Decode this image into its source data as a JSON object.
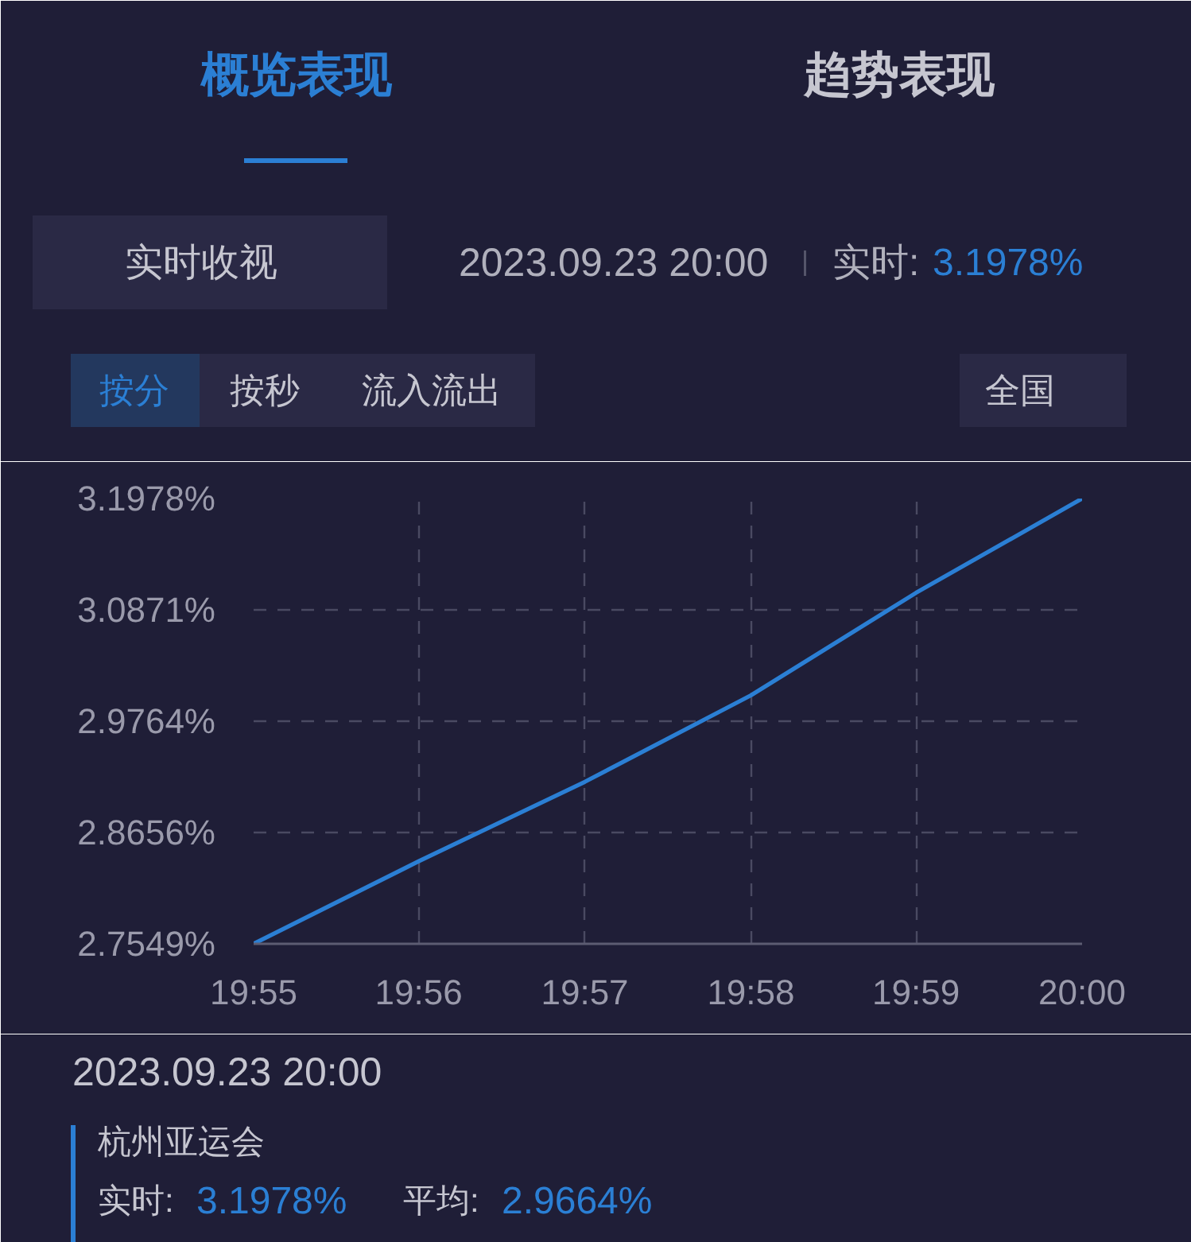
{
  "chart_data": {
    "type": "line",
    "title": "实时收视",
    "x": [
      19.9167,
      19.9333,
      19.95,
      19.9667,
      19.9833,
      20.0
    ],
    "series": [
      {
        "color": "#2b7fd4",
        "values": [
          2.7549,
          2.837,
          2.916,
          3.002,
          3.104,
          3.1978
        ]
      }
    ],
    "xlim": [
      19.9167,
      20.0
    ],
    "xticks": [
      {
        "value": 19.9167,
        "label": "19:55"
      },
      {
        "value": 19.9333,
        "label": "19:56"
      },
      {
        "value": 19.95,
        "label": "19:57"
      },
      {
        "value": 19.9667,
        "label": "19:58"
      },
      {
        "value": 19.9833,
        "label": "19:59"
      },
      {
        "value": 20.0,
        "label": "20:00"
      }
    ],
    "ylim": [
      2.7549,
      3.1978
    ],
    "yticks": [
      {
        "value": 2.7549,
        "label": "2.7549%"
      },
      {
        "value": 2.8656,
        "label": "2.8656%"
      },
      {
        "value": 2.9764,
        "label": "2.9764%"
      },
      {
        "value": 3.0871,
        "label": "3.0871%"
      },
      {
        "value": 3.1978,
        "label": "3.1978%"
      }
    ],
    "grid": true,
    "line_style": "solid",
    "annotations": [
      "概览表现",
      "趋势表现",
      "2023.09.23 20:00",
      "实时:",
      "3.1978%",
      "按分",
      "按秒",
      "流入流出",
      "全国",
      "2023.09.23 20:00",
      "杭州亚运会",
      "实时:",
      "3.1978%",
      "平均:",
      "2.9664%"
    ]
  }
}
